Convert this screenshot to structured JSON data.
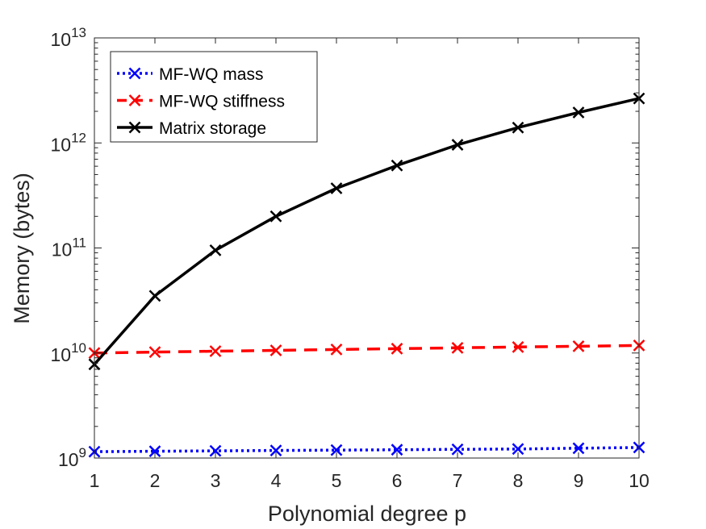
{
  "chart_data": {
    "type": "line",
    "xlabel": "Polynomial degree p",
    "ylabel": "Memory (bytes)",
    "yscale": "log",
    "x": [
      1,
      2,
      3,
      4,
      5,
      6,
      7,
      8,
      9,
      10
    ],
    "xlim": [
      1,
      10
    ],
    "ylim": [
      1000000000.0,
      10000000000000.0
    ],
    "x_ticks": [
      "1",
      "2",
      "3",
      "4",
      "5",
      "6",
      "7",
      "8",
      "9",
      "10"
    ],
    "y_ticks": [
      {
        "value": 1000000000.0,
        "base": "10",
        "exp": "9"
      },
      {
        "value": 10000000000.0,
        "base": "10",
        "exp": "10"
      },
      {
        "value": 100000000000.0,
        "base": "10",
        "exp": "11"
      },
      {
        "value": 1000000000000.0,
        "base": "10",
        "exp": "12"
      },
      {
        "value": 10000000000000.0,
        "base": "10",
        "exp": "13"
      }
    ],
    "grid": false,
    "legend_position": "top-left",
    "series": [
      {
        "name": "MF-WQ mass",
        "color": "#0000ff",
        "line_style": "dotted",
        "marker": "x",
        "values": [
          1150000000.0,
          1160000000.0,
          1170000000.0,
          1180000000.0,
          1190000000.0,
          1200000000.0,
          1210000000.0,
          1220000000.0,
          1240000000.0,
          1260000000.0
        ]
      },
      {
        "name": "MF-WQ stiffness",
        "color": "#ff0000",
        "line_style": "dashed",
        "marker": "x",
        "values": [
          10000000000.0,
          10200000000.0,
          10400000000.0,
          10600000000.0,
          10800000000.0,
          11000000000.0,
          11200000000.0,
          11400000000.0,
          11600000000.0,
          11800000000.0
        ]
      },
      {
        "name": "Matrix storage",
        "color": "#000000",
        "line_style": "solid",
        "marker": "x",
        "values": [
          7800000000.0,
          35000000000.0,
          95000000000.0,
          200000000000.0,
          370000000000.0,
          610000000000.0,
          960000000000.0,
          1400000000000.0,
          1950000000000.0,
          2650000000000.0
        ]
      }
    ]
  }
}
